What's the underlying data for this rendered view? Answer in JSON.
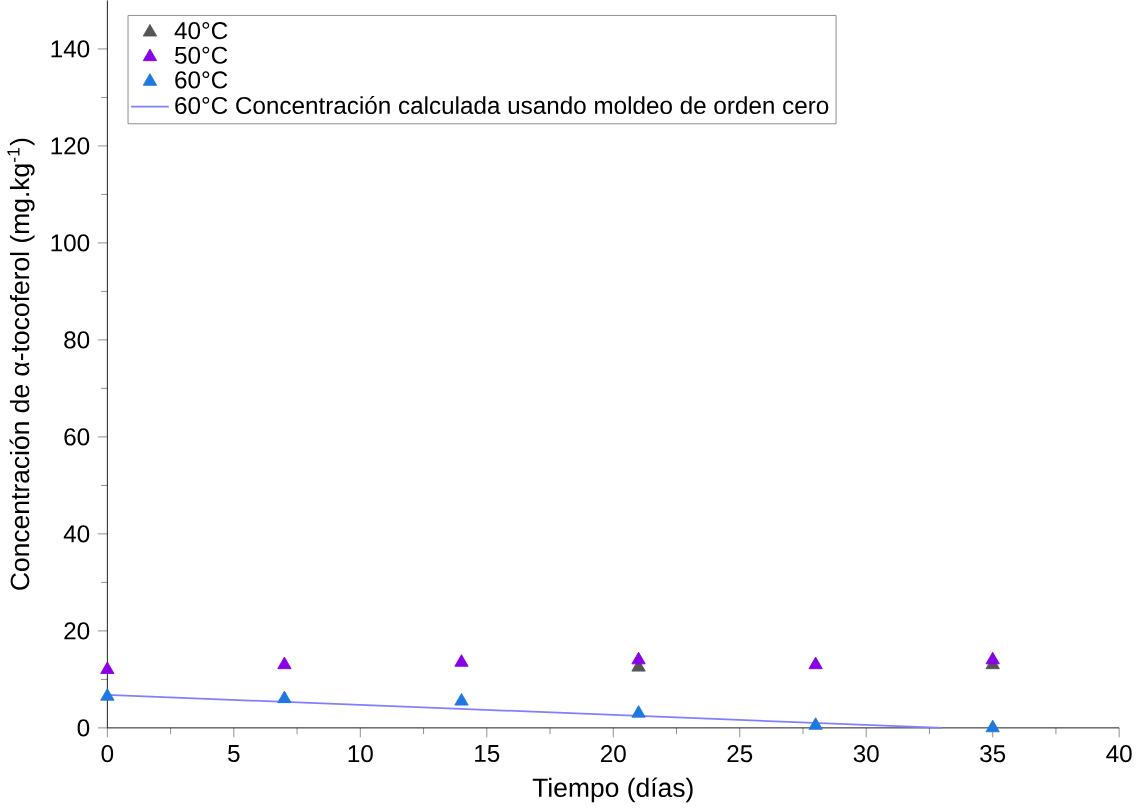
{
  "chart_data": {
    "type": "scatter",
    "xlabel": "Tiempo (días)",
    "ylabel": "Concentración de α-tocoferol (mg.kg$^{-1}$)",
    "xlim": [
      0,
      40
    ],
    "ylim": [
      0,
      150
    ],
    "xticks": [
      0,
      5,
      10,
      15,
      20,
      25,
      30,
      35,
      40
    ],
    "yticks": [
      0,
      20,
      40,
      60,
      80,
      100,
      120,
      140
    ],
    "marker": "triangle",
    "legend": "top left",
    "grid": false,
    "series": [
      {
        "name": "40°C",
        "color": "#555555",
        "x": [
          21,
          35
        ],
        "values": [
          12.5,
          13
        ]
      },
      {
        "name": "50°C",
        "color": "#8a00e6",
        "x": [
          0,
          7,
          14,
          21,
          28,
          35
        ],
        "values": [
          12,
          13,
          13.5,
          14,
          13,
          14
        ]
      },
      {
        "name": "60°C",
        "color": "#1f78e0",
        "x": [
          0,
          7,
          14,
          21,
          28,
          35
        ],
        "values": [
          6.5,
          6,
          5.5,
          3,
          0.5,
          0
        ]
      },
      {
        "name": "60°C Concentración calculada usando moldeo de orden cero",
        "type": "line",
        "marker": "none",
        "color": "#8080ff",
        "x": [
          0,
          33
        ],
        "values": [
          6.8,
          0
        ]
      }
    ]
  }
}
